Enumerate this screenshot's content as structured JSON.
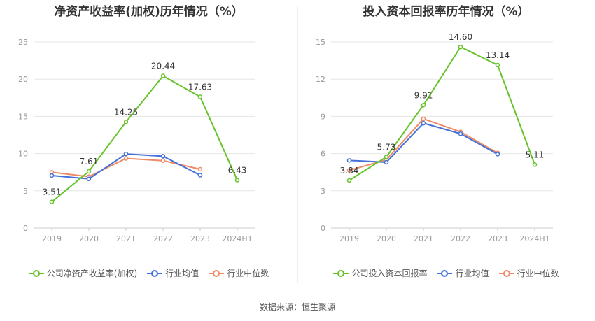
{
  "chart_data": [
    {
      "type": "line",
      "title": "净资产收益率(加权)历年情况（%）",
      "categories": [
        "2019",
        "2020",
        "2021",
        "2022",
        "2023",
        "2024H1"
      ],
      "ylim": [
        0,
        25
      ],
      "yticks": [
        0,
        5,
        10,
        15,
        20,
        25
      ],
      "grid": true,
      "legend_position": "bottom",
      "series": [
        {
          "name": "公司净资产收益率(加权)",
          "color": "#66c42a",
          "values": [
            3.51,
            7.61,
            14.25,
            20.44,
            17.63,
            6.43
          ],
          "labels": [
            "3.51",
            "7.61",
            "14.25",
            "20.44",
            "17.63",
            "6.43"
          ]
        },
        {
          "name": "行业均值",
          "color": "#4472d8",
          "values": [
            7.05,
            6.6,
            9.95,
            9.65,
            7.1,
            null
          ]
        },
        {
          "name": "行业中位数",
          "color": "#f08a66",
          "values": [
            7.5,
            6.9,
            9.35,
            9.05,
            7.9,
            null
          ]
        }
      ]
    },
    {
      "type": "line",
      "title": "投入资本回报率历年情况（%）",
      "categories": [
        "2019",
        "2020",
        "2021",
        "2022",
        "2023",
        "2024H1"
      ],
      "ylim": [
        0,
        15
      ],
      "yticks": [
        0,
        3,
        6,
        9,
        12,
        15
      ],
      "grid": true,
      "legend_position": "bottom",
      "series": [
        {
          "name": "公司投入资本回报率",
          "color": "#66c42a",
          "values": [
            3.84,
            5.73,
            9.91,
            14.6,
            13.14,
            5.11
          ],
          "labels": [
            "3.84",
            "5.73",
            "9.91",
            "14.60",
            "13.14",
            "5.11"
          ]
        },
        {
          "name": "行业均值",
          "color": "#4472d8",
          "values": [
            5.45,
            5.3,
            8.45,
            7.6,
            5.95,
            null
          ]
        },
        {
          "name": "行业中位数",
          "color": "#f08a66",
          "values": [
            4.65,
            5.5,
            8.8,
            7.75,
            6.05,
            null
          ]
        }
      ]
    }
  ],
  "source": "数据来源：恒生聚源"
}
